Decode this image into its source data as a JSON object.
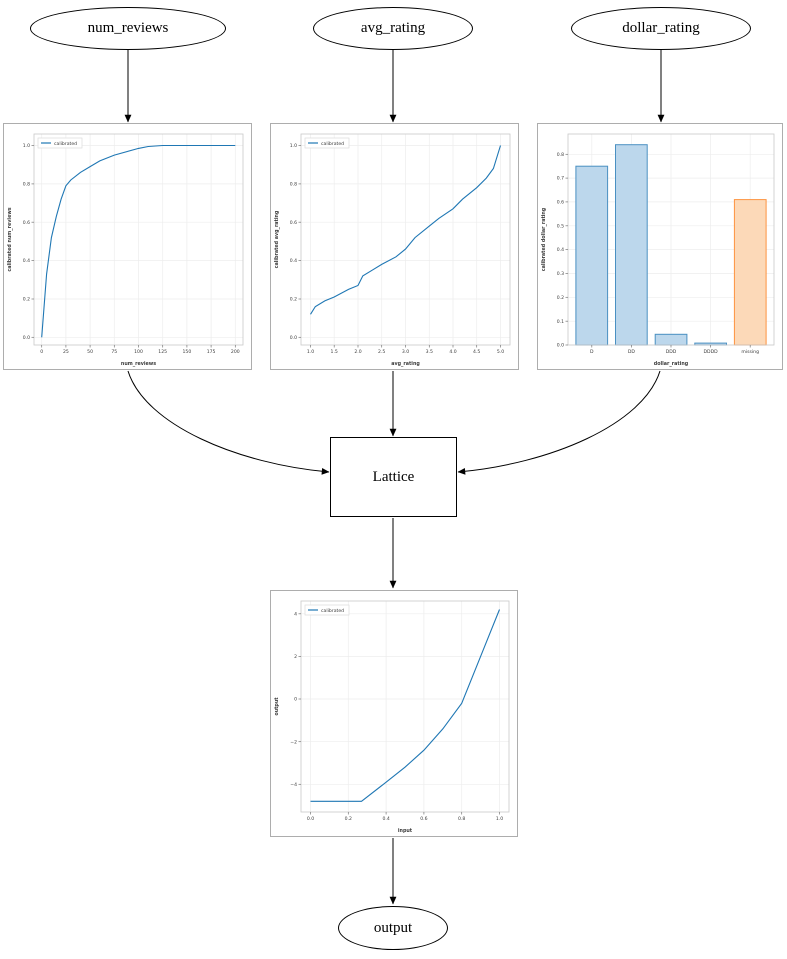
{
  "nodes": {
    "num_reviews": "num_reviews",
    "avg_rating": "avg_rating",
    "dollar_rating": "dollar_rating",
    "lattice": "Lattice",
    "output": "output"
  },
  "colors": {
    "line_blue": "#1f77b4",
    "bar_blue_fill": "#bcd7ec",
    "bar_blue_edge": "#4a90c2",
    "bar_orange_fill": "#fcd9b8",
    "bar_orange_edge": "#fd9340",
    "edge_black": "#000000"
  },
  "chart_data": [
    {
      "type": "line",
      "title": "",
      "xlabel": "num_reviews",
      "ylabel": "calibrated num_reviews",
      "legend": [
        "calibrated"
      ],
      "legend_position": "upper left",
      "grid": true,
      "xlim": [
        -8,
        208
      ],
      "ylim": [
        -0.04,
        1.06
      ],
      "xticks": [
        0,
        25,
        50,
        75,
        100,
        125,
        150,
        175,
        200
      ],
      "xtick_labels": [
        "0",
        "25",
        "50",
        "75",
        "100",
        "125",
        "150",
        "175",
        "200"
      ],
      "yticks": [
        0,
        0.2,
        0.4,
        0.6,
        0.8,
        1.0
      ],
      "ytick_labels": [
        "0.0",
        "0.2",
        "0.4",
        "0.6",
        "0.8",
        "1.0"
      ],
      "x": [
        0,
        5,
        10,
        15,
        20,
        25,
        30,
        40,
        50,
        60,
        75,
        100,
        110,
        125,
        150,
        175,
        200
      ],
      "y": [
        0.0,
        0.33,
        0.52,
        0.63,
        0.72,
        0.79,
        0.82,
        0.86,
        0.89,
        0.92,
        0.95,
        0.985,
        0.995,
        1.0,
        1.0,
        1.0,
        1.0
      ]
    },
    {
      "type": "line",
      "title": "",
      "xlabel": "avg_rating",
      "ylabel": "calibrated avg_rating",
      "legend": [
        "calibrated"
      ],
      "legend_position": "upper left",
      "grid": true,
      "xlim": [
        0.8,
        5.2
      ],
      "ylim": [
        -0.04,
        1.06
      ],
      "xticks": [
        1.0,
        1.5,
        2.0,
        2.5,
        3.0,
        3.5,
        4.0,
        4.5,
        5.0
      ],
      "xtick_labels": [
        "1.0",
        "1.5",
        "2.0",
        "2.5",
        "3.0",
        "3.5",
        "4.0",
        "4.5",
        "5.0"
      ],
      "yticks": [
        0,
        0.2,
        0.4,
        0.6,
        0.8,
        1.0
      ],
      "ytick_labels": [
        "0.0",
        "0.2",
        "0.4",
        "0.6",
        "0.8",
        "1.0"
      ],
      "x": [
        1.0,
        1.1,
        1.3,
        1.5,
        1.8,
        2.0,
        2.1,
        2.3,
        2.5,
        2.8,
        3.0,
        3.2,
        3.5,
        3.7,
        4.0,
        4.2,
        4.5,
        4.7,
        4.85,
        5.0
      ],
      "y": [
        0.12,
        0.16,
        0.19,
        0.21,
        0.25,
        0.27,
        0.32,
        0.35,
        0.38,
        0.42,
        0.46,
        0.52,
        0.58,
        0.62,
        0.67,
        0.72,
        0.78,
        0.83,
        0.88,
        1.0
      ]
    },
    {
      "type": "bar",
      "title": "",
      "xlabel": "dollar_rating",
      "ylabel": "calibrated dollar_rating",
      "grid": true,
      "categories": [
        "D",
        "DD",
        "DDD",
        "DDDD",
        "missing"
      ],
      "values": [
        0.75,
        0.84,
        0.045,
        0.008,
        0.61
      ],
      "bar_fill": [
        "#bcd7ec",
        "#bcd7ec",
        "#bcd7ec",
        "#bcd7ec",
        "#fcd9b8"
      ],
      "bar_edge": [
        "#4a90c2",
        "#4a90c2",
        "#4a90c2",
        "#4a90c2",
        "#fd9340"
      ],
      "xlim": [
        -0.6,
        4.6
      ],
      "ylim": [
        0,
        0.885
      ],
      "yticks": [
        0,
        0.1,
        0.2,
        0.3,
        0.4,
        0.5,
        0.6,
        0.7,
        0.8
      ],
      "ytick_labels": [
        "0.0",
        "0.1",
        "0.2",
        "0.3",
        "0.4",
        "0.5",
        "0.6",
        "0.7",
        "0.8"
      ]
    },
    {
      "type": "line",
      "title": "",
      "xlabel": "input",
      "ylabel": "output",
      "legend": [
        "calibrated"
      ],
      "legend_position": "upper left",
      "grid": true,
      "xlim": [
        -0.05,
        1.05
      ],
      "ylim": [
        -5.3,
        4.6
      ],
      "xticks": [
        0,
        0.2,
        0.4,
        0.6,
        0.8,
        1.0
      ],
      "xtick_labels": [
        "0.0",
        "0.2",
        "0.4",
        "0.6",
        "0.8",
        "1.0"
      ],
      "yticks": [
        -4,
        -2,
        0,
        2,
        4
      ],
      "ytick_labels": [
        "−4",
        "−2",
        "0",
        "2",
        "4"
      ],
      "x": [
        0,
        0.1,
        0.2,
        0.27,
        0.4,
        0.5,
        0.6,
        0.7,
        0.8,
        0.9,
        1.0
      ],
      "y": [
        -4.8,
        -4.8,
        -4.8,
        -4.8,
        -3.9,
        -3.2,
        -2.4,
        -1.4,
        -0.2,
        2.0,
        4.2
      ]
    }
  ]
}
